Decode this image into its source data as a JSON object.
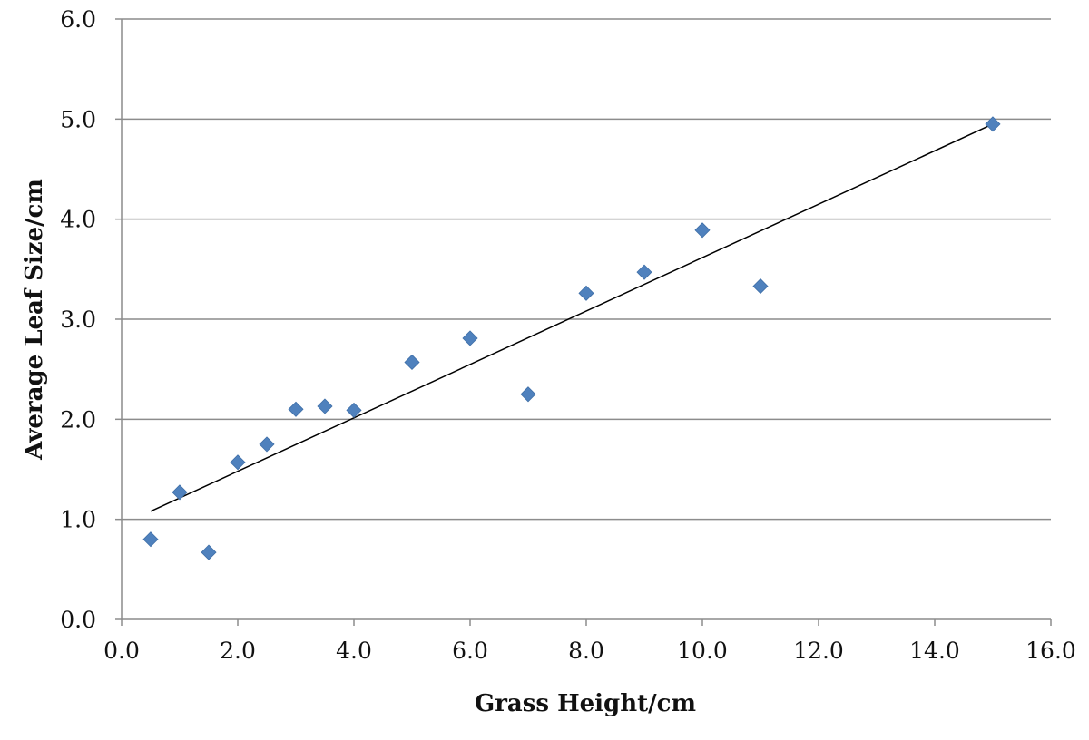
{
  "chart_data": {
    "type": "scatter",
    "title": "",
    "xlabel": "Grass Height/cm",
    "ylabel": "Average Leaf Size/cm",
    "xlim": [
      0,
      16
    ],
    "ylim": [
      0,
      6
    ],
    "x_ticks": [
      "0.0",
      "2.0",
      "4.0",
      "6.0",
      "8.0",
      "10.0",
      "12.0",
      "14.0",
      "16.0"
    ],
    "y_ticks": [
      "0.0",
      "1.0",
      "2.0",
      "3.0",
      "4.0",
      "5.0",
      "6.0"
    ],
    "grid": "horizontal",
    "legend": "none",
    "series": [
      {
        "marker": "diamond",
        "color": "#4f81bd",
        "points": [
          {
            "x": 0.5,
            "y": 0.8
          },
          {
            "x": 1.0,
            "y": 1.27
          },
          {
            "x": 1.5,
            "y": 0.67
          },
          {
            "x": 2.0,
            "y": 1.57
          },
          {
            "x": 2.5,
            "y": 1.75
          },
          {
            "x": 3.0,
            "y": 2.1
          },
          {
            "x": 3.5,
            "y": 2.13
          },
          {
            "x": 4.0,
            "y": 2.09
          },
          {
            "x": 5.0,
            "y": 2.57
          },
          {
            "x": 6.0,
            "y": 2.81
          },
          {
            "x": 7.0,
            "y": 2.25
          },
          {
            "x": 8.0,
            "y": 3.26
          },
          {
            "x": 9.0,
            "y": 3.47
          },
          {
            "x": 10.0,
            "y": 3.89
          },
          {
            "x": 11.0,
            "y": 3.33
          },
          {
            "x": 15.0,
            "y": 4.95
          }
        ]
      }
    ],
    "trendline": {
      "type": "linear",
      "color": "#000000",
      "x_start": 0.5,
      "y_start": 1.08,
      "x_end": 15.0,
      "y_end": 4.95
    }
  }
}
